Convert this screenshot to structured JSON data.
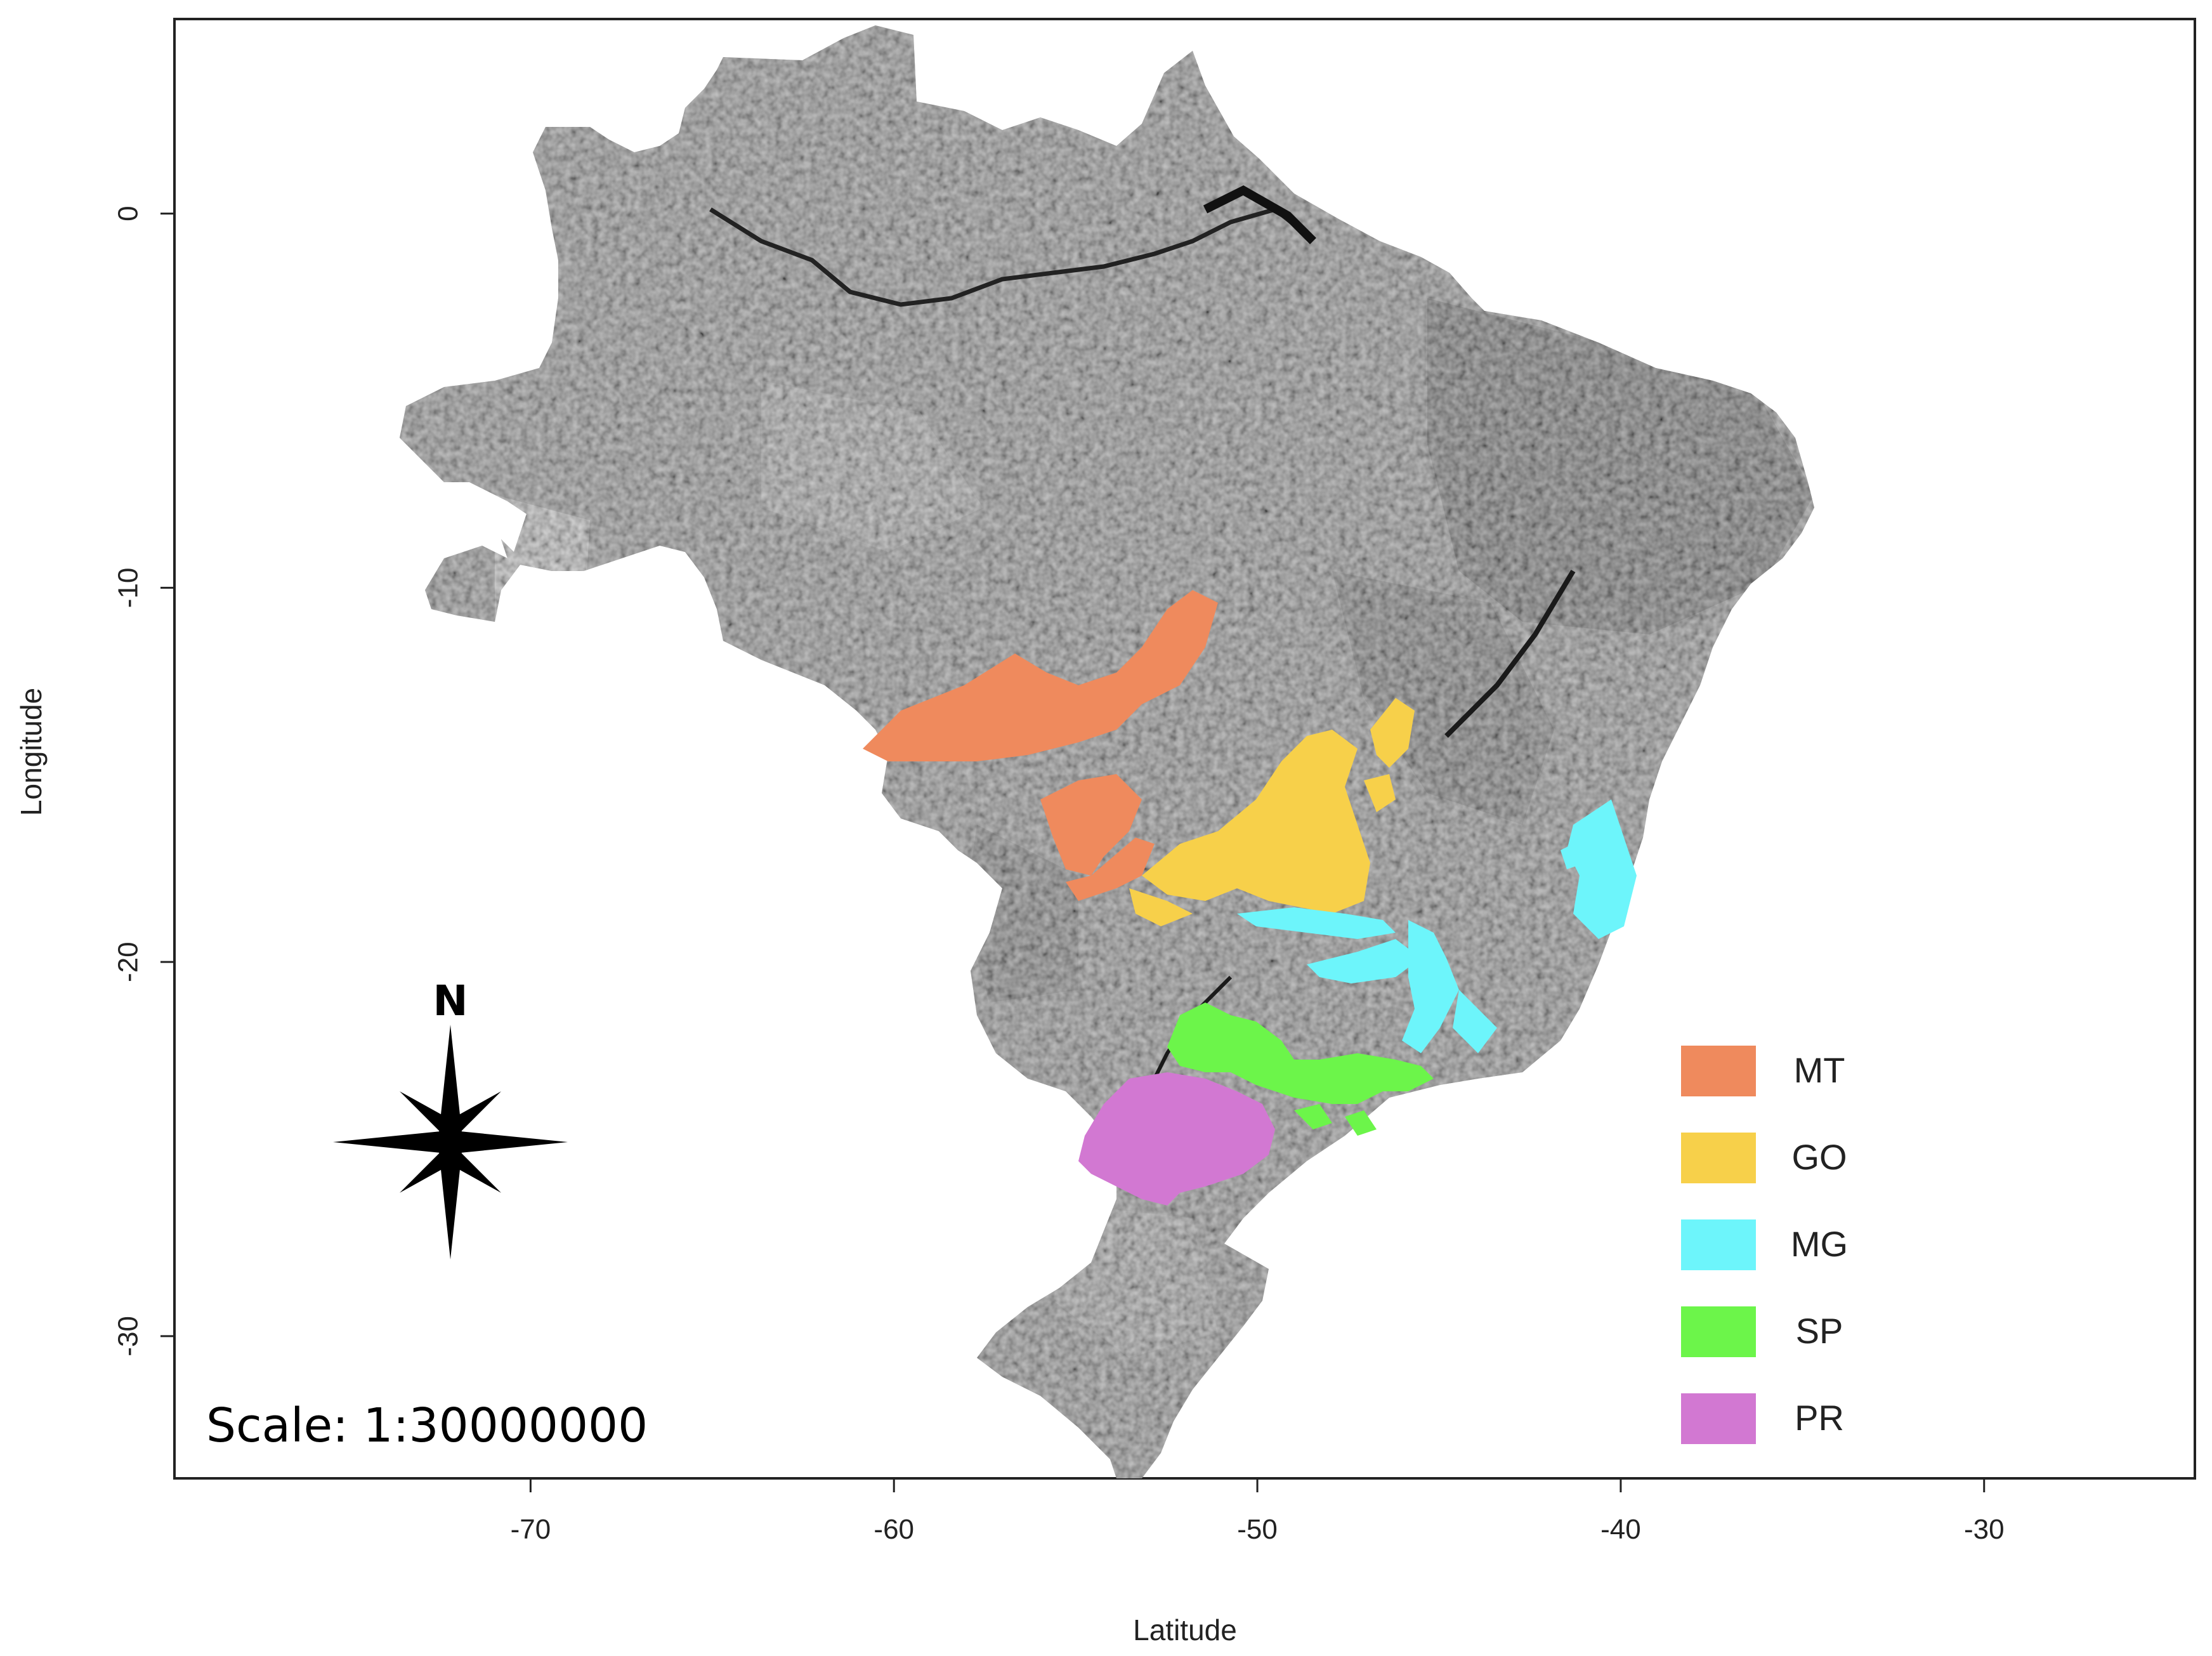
{
  "axes": {
    "x_label": "Latitude",
    "y_label": "Longitude",
    "x_ticks": [
      "-70",
      "-60",
      "-50",
      "-40",
      "-30"
    ],
    "x_tick_values": [
      -70,
      -60,
      -50,
      -40,
      -30
    ],
    "y_ticks": [
      "0",
      "-10",
      "-20",
      "-30"
    ],
    "y_tick_values": [
      0,
      -10,
      -20,
      -30
    ],
    "x_range": [
      -79.8,
      -24.2
    ],
    "y_range": [
      -33.8,
      5.2
    ]
  },
  "compass": {
    "label": "N",
    "icon": "compass-rose-icon"
  },
  "scale_text": "Scale: 1:30000000",
  "legend": {
    "placement": "bottom-right",
    "items": [
      {
        "label": "MT",
        "color": "#ef8a5d"
      },
      {
        "label": "GO",
        "color": "#f7d04a"
      },
      {
        "label": "MG",
        "color": "#6df5fb"
      },
      {
        "label": "SP",
        "color": "#6cf54a"
      },
      {
        "label": "PR",
        "color": "#d278d2"
      }
    ]
  },
  "colors": {
    "map_base": "#8c8c8c",
    "map_light": "#a6a6a6",
    "map_dark": "#5e5e5e",
    "rivers": "#111111"
  }
}
